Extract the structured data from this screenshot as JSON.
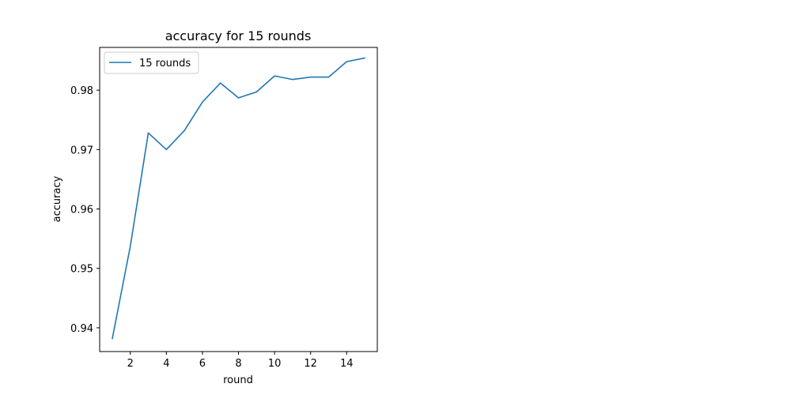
{
  "chart_data": {
    "type": "line",
    "title": "accuracy for 15 rounds",
    "xlabel": "round",
    "ylabel": "accuracy",
    "x": [
      1,
      2,
      3,
      4,
      5,
      6,
      7,
      8,
      9,
      10,
      11,
      12,
      13,
      14,
      15
    ],
    "series": [
      {
        "name": "15 rounds",
        "color": "#1f77b4",
        "values": [
          0.9382,
          0.9537,
          0.9728,
          0.97,
          0.9732,
          0.978,
          0.9812,
          0.9787,
          0.9797,
          0.9824,
          0.9818,
          0.9822,
          0.9822,
          0.9848,
          0.9854
        ]
      }
    ],
    "xlim": [
      0.3,
      15.7
    ],
    "ylim": [
      0.936,
      0.9872
    ],
    "xticks": [
      2,
      4,
      6,
      8,
      10,
      12,
      14
    ],
    "xtick_labels": [
      "2",
      "4",
      "6",
      "8",
      "10",
      "12",
      "14"
    ],
    "yticks": [
      0.94,
      0.95,
      0.96,
      0.97,
      0.98
    ],
    "ytick_labels": [
      "0.94",
      "0.95",
      "0.96",
      "0.97",
      "0.98"
    ],
    "grid": false,
    "legend": "top-left"
  }
}
